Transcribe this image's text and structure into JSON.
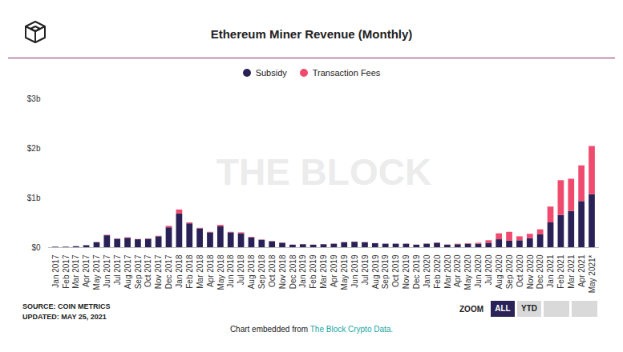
{
  "chart_data": {
    "type": "bar",
    "title": "Ethereum Miner Revenue (Monthly)",
    "stacked": true,
    "legend": "top",
    "grid": false,
    "watermark": "THE BLOCK",
    "source": "SOURCE: COIN METRICS",
    "updated": "UPDATED: MAY 25, 2021",
    "zoom_label": "ZOOM",
    "zoom_buttons": [
      "ALL",
      "YTD"
    ],
    "caption": {
      "text": "Chart embedded from",
      "link": "The Block Crypto Data."
    },
    "categories": [
      "Jan 2017",
      "Feb 2017",
      "Mar 2017",
      "Apr 2017",
      "May 2017",
      "Jun 2017",
      "Jul 2017",
      "Aug 2017",
      "Sep 2017",
      "Oct 2017",
      "Nov 2017",
      "Dec 2017",
      "Jan 2018",
      "Feb 2018",
      "Mar 2018",
      "Apr 2018",
      "May 2018",
      "Jun 2018",
      "Jul 2018",
      "Aug 2018",
      "Sep 2018",
      "Oct 2018",
      "Nov 2018",
      "Dec 2018",
      "Jan 2019",
      "Feb 2019",
      "Mar 2019",
      "Apr 2019",
      "May 2019",
      "Jun 2019",
      "Jul 2019",
      "Aug 2019",
      "Sep 2019",
      "Oct 2019",
      "Nov 2019",
      "Dec 2019",
      "Jan 2020",
      "Feb 2020",
      "Mar 2020",
      "Apr 2020",
      "May 2020",
      "Jun 2020",
      "Jul 2020",
      "Aug 2020",
      "Sep 2020",
      "Oct 2020",
      "Nov 2020",
      "Dec 2020",
      "Jan 2021",
      "Feb 2021",
      "Mar 2021",
      "Apr 2021",
      "May 2021*"
    ],
    "series": [
      {
        "name": "Subsidy",
        "color": "#2a2157",
        "values": [
          0.01,
          0.01,
          0.02,
          0.04,
          0.1,
          0.24,
          0.17,
          0.19,
          0.16,
          0.17,
          0.22,
          0.4,
          0.68,
          0.48,
          0.38,
          0.3,
          0.42,
          0.3,
          0.28,
          0.2,
          0.15,
          0.12,
          0.09,
          0.05,
          0.06,
          0.05,
          0.06,
          0.07,
          0.1,
          0.11,
          0.1,
          0.08,
          0.07,
          0.07,
          0.07,
          0.05,
          0.07,
          0.09,
          0.05,
          0.06,
          0.07,
          0.07,
          0.09,
          0.16,
          0.13,
          0.14,
          0.18,
          0.26,
          0.5,
          0.65,
          0.73,
          0.93,
          1.07
        ]
      },
      {
        "name": "Transaction Fees",
        "color": "#ef4b6f",
        "values": [
          0,
          0,
          0,
          0,
          0.005,
          0.01,
          0.005,
          0.01,
          0.005,
          0.005,
          0.01,
          0.03,
          0.08,
          0.02,
          0.01,
          0.01,
          0.03,
          0.01,
          0.02,
          0.01,
          0.005,
          0.005,
          0.005,
          0.003,
          0.003,
          0.002,
          0.002,
          0.003,
          0.004,
          0.004,
          0.003,
          0.003,
          0.003,
          0.003,
          0.003,
          0.003,
          0.005,
          0.006,
          0.005,
          0.01,
          0.01,
          0.02,
          0.05,
          0.12,
          0.18,
          0.08,
          0.09,
          0.1,
          0.32,
          0.7,
          0.65,
          0.72,
          0.97
        ]
      }
    ],
    "ylim": [
      0,
      3
    ],
    "yticks": [
      {
        "value": 0,
        "label": "$0"
      },
      {
        "value": 1,
        "label": "$1b"
      },
      {
        "value": 2,
        "label": "$2b"
      },
      {
        "value": 3,
        "label": "$3b"
      }
    ]
  }
}
